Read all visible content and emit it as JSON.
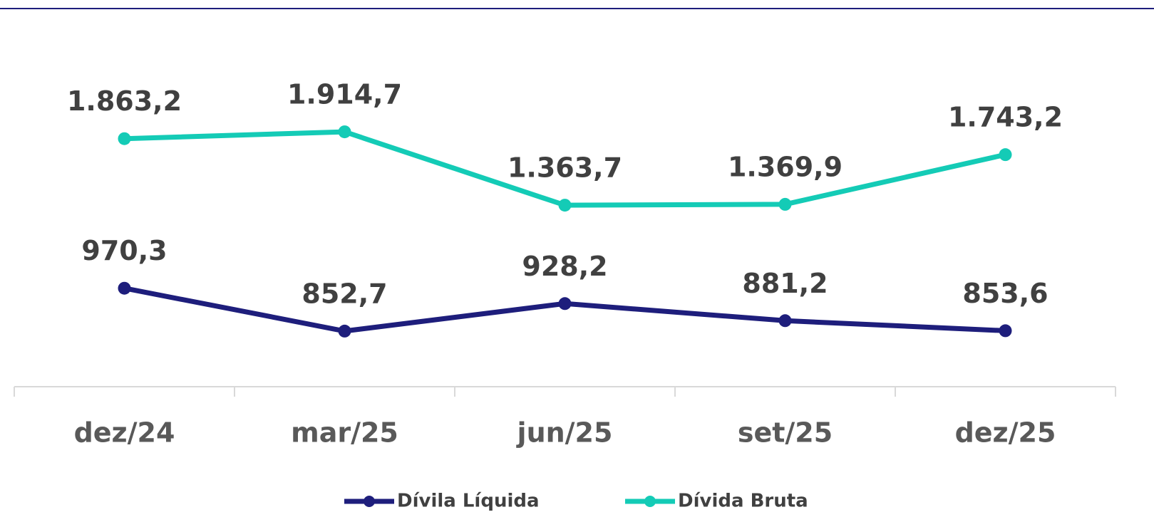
{
  "chart_data": {
    "type": "line",
    "categories": [
      "dez/24",
      "mar/25",
      "jun/25",
      "set/25",
      "dez/25"
    ],
    "series": [
      {
        "name": "Dívila Líquida",
        "color": "#1e1e7c",
        "values": [
          970.3,
          852.7,
          928.2,
          881.2,
          853.6
        ],
        "value_labels": [
          "970,3",
          "852,7",
          "928,2",
          "881,2",
          "853,6"
        ]
      },
      {
        "name": "Dívida Bruta",
        "color": "#14cbb6",
        "axis": "y2",
        "values": [
          1863.2,
          1914.7,
          1363.7,
          1369.9,
          1743.2
        ],
        "value_labels": [
          "1.863,2",
          "1.914,7",
          "1.363,7",
          "1.369,9",
          "1.743,2"
        ]
      }
    ],
    "ylim": [
      700,
      1650
    ],
    "y2lim": [
      0,
      2600
    ],
    "legend": "bottom"
  }
}
